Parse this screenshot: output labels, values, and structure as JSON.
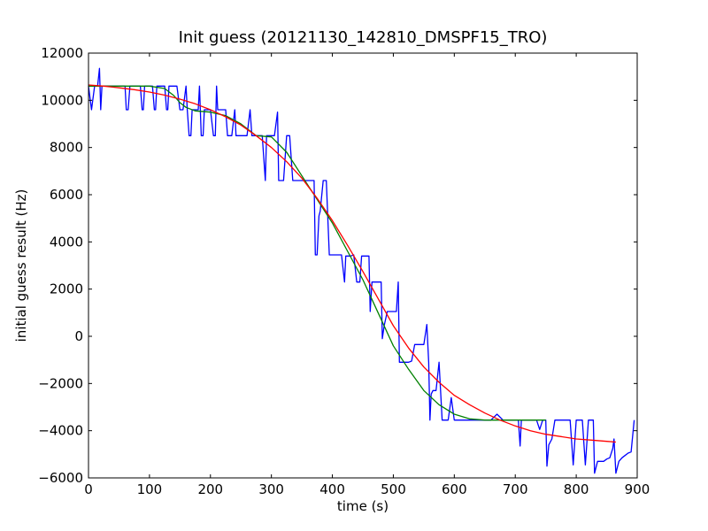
{
  "chart_data": {
    "type": "line",
    "title": "Init guess (20121130_142810_DMSPF15_TRO)",
    "xlabel": "time (s)",
    "ylabel": "initial guess result (Hz)",
    "xlim": [
      0,
      900
    ],
    "ylim": [
      -6000,
      12000
    ],
    "xticks": [
      0,
      100,
      200,
      300,
      400,
      500,
      600,
      700,
      800,
      900
    ],
    "yticks": [
      -6000,
      -4000,
      -2000,
      0,
      2000,
      4000,
      6000,
      8000,
      10000,
      12000
    ],
    "grid": false,
    "legend": "none",
    "series": [
      {
        "color": "#0000ff",
        "x": [
          0,
          5,
          10,
          15,
          18,
          20,
          22,
          25,
          30,
          40,
          50,
          60,
          62,
          65,
          68,
          70,
          75,
          80,
          85,
          88,
          90,
          92,
          95,
          100,
          105,
          108,
          110,
          112,
          115,
          120,
          125,
          128,
          130,
          132,
          135,
          140,
          145,
          150,
          155,
          160,
          162,
          165,
          168,
          170,
          175,
          180,
          182,
          185,
          188,
          190,
          195,
          200,
          205,
          208,
          210,
          212,
          215,
          220,
          225,
          228,
          230,
          235,
          240,
          242,
          245,
          248,
          250,
          255,
          260,
          265,
          268,
          270,
          275,
          280,
          285,
          290,
          292,
          295,
          300,
          305,
          310,
          312,
          315,
          320,
          325,
          330,
          335,
          340,
          345,
          350,
          355,
          360,
          362,
          365,
          368,
          370,
          372,
          375,
          378,
          380,
          385,
          390,
          395,
          400,
          405,
          410,
          415,
          420,
          422,
          425,
          430,
          435,
          440,
          445,
          448,
          450,
          455,
          460,
          462,
          465,
          470,
          475,
          480,
          482,
          485,
          490,
          495,
          500,
          505,
          508,
          510,
          515,
          520,
          525,
          530,
          535,
          540,
          545,
          550,
          555,
          558,
          560,
          562,
          565,
          570,
          575,
          580,
          585,
          588,
          590,
          595,
          600,
          605,
          610,
          615,
          620,
          630,
          640,
          650,
          660,
          670,
          680,
          685,
          690,
          695,
          700,
          705,
          708,
          710,
          715,
          720,
          725,
          730,
          735,
          740,
          745,
          750,
          752,
          755,
          760,
          765,
          770,
          775,
          780,
          785,
          790,
          795,
          800,
          805,
          808,
          810,
          815,
          820,
          825,
          828,
          830,
          835,
          840,
          845,
          850,
          855,
          860,
          862,
          865,
          870,
          875,
          880,
          885,
          890,
          895
        ],
        "y": [
          10600,
          9600,
          10600,
          10600,
          11350,
          9600,
          10600,
          10600,
          10600,
          10600,
          10600,
          10600,
          9600,
          9600,
          10600,
          10600,
          10600,
          10600,
          10600,
          9600,
          9600,
          10600,
          10600,
          10600,
          10600,
          9600,
          9600,
          10600,
          10600,
          10600,
          10600,
          9600,
          9600,
          10600,
          10600,
          10600,
          10600,
          9600,
          9600,
          10600,
          9600,
          8500,
          8500,
          9600,
          9600,
          9600,
          10600,
          8500,
          8500,
          9600,
          9600,
          9600,
          8500,
          8500,
          10600,
          9600,
          9600,
          9600,
          9600,
          8500,
          8500,
          8500,
          9600,
          8500,
          8500,
          8500,
          8500,
          8500,
          8500,
          9600,
          8500,
          8500,
          8500,
          8500,
          8500,
          6600,
          8500,
          8500,
          8500,
          8500,
          9500,
          6600,
          6600,
          6600,
          8500,
          8500,
          6600,
          6600,
          6600,
          6600,
          6600,
          6600,
          6600,
          6600,
          6600,
          6600,
          3450,
          3450,
          5100,
          5300,
          6600,
          6600,
          3450,
          3450,
          3450,
          3450,
          3450,
          2300,
          3400,
          3400,
          3400,
          3450,
          2300,
          2300,
          3400,
          3400,
          3400,
          3400,
          1050,
          2300,
          2300,
          2300,
          2300,
          -100,
          450,
          1050,
          1050,
          1050,
          1050,
          2300,
          -1100,
          -1100,
          -1100,
          -1100,
          -1050,
          -350,
          -350,
          -350,
          -350,
          500,
          -1100,
          -3550,
          -2450,
          -2300,
          -2300,
          -1100,
          -3550,
          -3550,
          -3550,
          -3550,
          -2600,
          -3550,
          -3550,
          -3550,
          -3550,
          -3550,
          -3550,
          -3550,
          -3550,
          -3550,
          -3300,
          -3550,
          -3550,
          -3550,
          -3550,
          -3550,
          -3550,
          -4650,
          -3550,
          -3550,
          -3550,
          -3550,
          -3550,
          -3550,
          -3950,
          -3550,
          -3550,
          -5500,
          -4600,
          -4350,
          -3550,
          -3550,
          -3550,
          -3550,
          -3550,
          -3550,
          -5450,
          -3550,
          -3550,
          -3550,
          -3550,
          -5450,
          -3550,
          -3550,
          -3550,
          -5800,
          -5300,
          -5300,
          -5300,
          -5200,
          -5150,
          -4750,
          -4350,
          -5800,
          -5300,
          -5150,
          -5050,
          -4950,
          -4900,
          -3550
        ]
      },
      {
        "color": "#008000",
        "x": [
          0,
          25,
          50,
          75,
          100,
          125,
          140,
          150,
          160,
          175,
          200,
          225,
          250,
          275,
          300,
          325,
          350,
          375,
          400,
          425,
          450,
          475,
          500,
          525,
          550,
          575,
          600,
          625,
          650,
          675,
          700,
          725,
          750
        ],
        "y": [
          10600,
          10600,
          10600,
          10600,
          10600,
          10500,
          10200,
          9900,
          9700,
          9550,
          9500,
          9350,
          9000,
          8500,
          8450,
          7800,
          6800,
          5800,
          4800,
          3600,
          2400,
          1000,
          -400,
          -1400,
          -2300,
          -2900,
          -3300,
          -3500,
          -3550,
          -3550,
          -3550,
          -3550,
          -3550
        ]
      },
      {
        "color": "#ff0000",
        "x": [
          0,
          25,
          50,
          75,
          100,
          125,
          150,
          175,
          200,
          225,
          250,
          275,
          300,
          325,
          350,
          375,
          400,
          425,
          450,
          475,
          500,
          525,
          550,
          575,
          600,
          625,
          650,
          675,
          700,
          725,
          750,
          775,
          800,
          825,
          850,
          865
        ],
        "y": [
          10650,
          10600,
          10530,
          10450,
          10350,
          10220,
          10050,
          9850,
          9600,
          9300,
          8950,
          8500,
          8000,
          7400,
          6700,
          5850,
          4900,
          3850,
          2750,
          1600,
          450,
          -500,
          -1300,
          -1950,
          -2500,
          -2900,
          -3250,
          -3550,
          -3800,
          -4000,
          -4150,
          -4250,
          -4350,
          -4400,
          -4450,
          -4480
        ]
      }
    ]
  }
}
